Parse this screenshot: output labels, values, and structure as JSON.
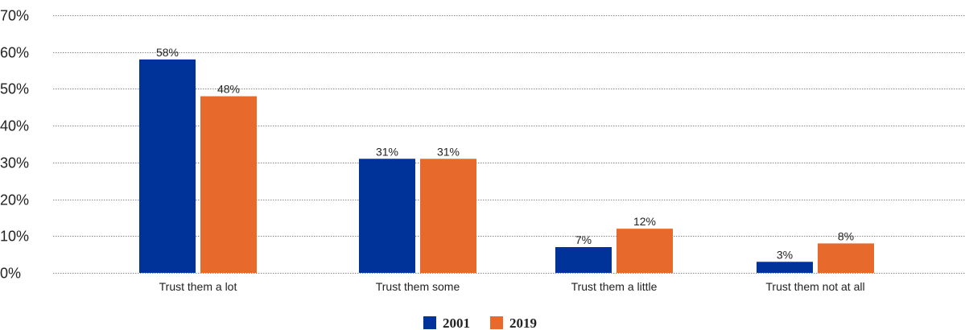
{
  "chart_data": {
    "type": "bar",
    "categories": [
      "Trust them a lot",
      "Trust them some",
      "Trust them a little",
      "Trust them not at all"
    ],
    "series": [
      {
        "name": "2001",
        "values": [
          58,
          31,
          7,
          3
        ],
        "labels": [
          "58%",
          "31%",
          "7%",
          "3%"
        ],
        "color": "#003399"
      },
      {
        "name": "2019",
        "values": [
          48,
          31,
          12,
          8
        ],
        "labels": [
          "48%",
          "31%",
          "12%",
          "8%"
        ],
        "color": "#E8692C"
      }
    ],
    "y_ticks": [
      "0%",
      "10%",
      "20%",
      "30%",
      "40%",
      "50%",
      "60%",
      "70%"
    ],
    "y_tick_values": [
      0,
      10,
      20,
      30,
      40,
      50,
      60,
      70
    ],
    "ylim": [
      0,
      70
    ],
    "grid": true,
    "legend_position": "bottom-center",
    "title": "",
    "xlabel": "",
    "ylabel": ""
  }
}
